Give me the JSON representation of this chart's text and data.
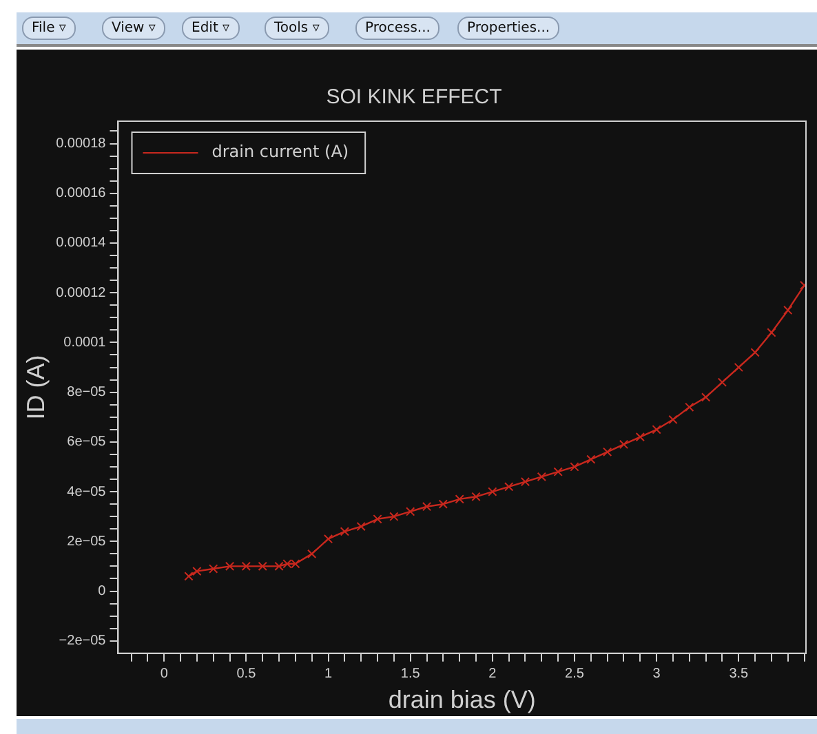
{
  "chart_data": {
    "type": "line",
    "title": "SOI KINK EFFECT",
    "xlabel": "drain bias (V)",
    "ylabel": "ID (A)",
    "x": [
      0.15,
      0.2,
      0.3,
      0.4,
      0.5,
      0.6,
      0.7,
      0.75,
      0.8,
      0.9,
      1.0,
      1.1,
      1.2,
      1.3,
      1.4,
      1.5,
      1.6,
      1.7,
      1.8,
      1.9,
      2.0,
      2.1,
      2.2,
      2.3,
      2.4,
      2.5,
      2.6,
      2.7,
      2.8,
      2.9,
      3.0,
      3.1,
      3.2,
      3.3,
      3.4,
      3.5,
      3.6,
      3.7,
      3.8,
      3.9
    ],
    "series": [
      {
        "name": "drain current (A)",
        "color": "#c8281e",
        "values": [
          6e-06,
          8e-06,
          9e-06,
          1e-05,
          1e-05,
          1e-05,
          1e-05,
          1.1e-05,
          1.1e-05,
          1.5e-05,
          2.1e-05,
          2.4e-05,
          2.6e-05,
          2.9e-05,
          3e-05,
          3.2e-05,
          3.4e-05,
          3.5e-05,
          3.7e-05,
          3.8e-05,
          4e-05,
          4.2e-05,
          4.4e-05,
          4.6e-05,
          4.8e-05,
          5e-05,
          5.3e-05,
          5.6e-05,
          5.9e-05,
          6.2e-05,
          6.5e-05,
          6.9e-05,
          7.4e-05,
          7.8e-05,
          8.4e-05,
          9e-05,
          9.6e-05,
          0.000104,
          0.000113,
          0.000123
        ]
      }
    ],
    "xlim": [
      -0.28,
      3.91
    ],
    "ylim": [
      -2.5e-05,
      0.000189
    ],
    "xticks": [
      {
        "value": -0.2,
        "label": null
      },
      {
        "value": -0.1,
        "label": null
      },
      0,
      {
        "value": 0.1,
        "label": null
      },
      {
        "value": 0.2,
        "label": null
      },
      {
        "value": 0.3,
        "label": null
      },
      {
        "value": 0.4,
        "label": null
      },
      0.5,
      {
        "value": 0.6,
        "label": null
      },
      {
        "value": 0.7,
        "label": null
      },
      {
        "value": 0.8,
        "label": null
      },
      {
        "value": 0.9,
        "label": null
      },
      1,
      {
        "value": 1.1,
        "label": null
      },
      {
        "value": 1.2,
        "label": null
      },
      {
        "value": 1.3,
        "label": null
      },
      {
        "value": 1.4,
        "label": null
      },
      1.5,
      {
        "value": 1.6,
        "label": null
      },
      {
        "value": 1.7,
        "label": null
      },
      {
        "value": 1.8,
        "label": null
      },
      {
        "value": 1.9,
        "label": null
      },
      2,
      {
        "value": 2.1,
        "label": null
      },
      {
        "value": 2.2,
        "label": null
      },
      {
        "value": 2.3,
        "label": null
      },
      {
        "value": 2.4,
        "label": null
      },
      2.5,
      {
        "value": 2.6,
        "label": null
      },
      {
        "value": 2.7,
        "label": null
      },
      {
        "value": 2.8,
        "label": null
      },
      {
        "value": 2.9,
        "label": null
      },
      3,
      {
        "value": 3.1,
        "label": null
      },
      {
        "value": 3.2,
        "label": null
      },
      {
        "value": 3.3,
        "label": null
      },
      {
        "value": 3.4,
        "label": null
      },
      3.5,
      {
        "value": 3.6,
        "label": null
      },
      {
        "value": 3.7,
        "label": null
      },
      {
        "value": 3.8,
        "label": null
      },
      {
        "value": 3.9,
        "label": null
      }
    ],
    "yticks": [
      {
        "value": -2e-05,
        "label": "−2e−05"
      },
      {
        "value": -1.5e-05,
        "label": null
      },
      {
        "value": -1e-05,
        "label": null
      },
      {
        "value": -5e-06,
        "label": null
      },
      0,
      {
        "value": 5e-06,
        "label": null
      },
      {
        "value": 1e-05,
        "label": null
      },
      {
        "value": 1.5e-05,
        "label": null
      },
      {
        "value": 2e-05,
        "label": "2e−05"
      },
      {
        "value": 2.5e-05,
        "label": null
      },
      {
        "value": 3e-05,
        "label": null
      },
      {
        "value": 3.5e-05,
        "label": null
      },
      {
        "value": 4e-05,
        "label": "4e−05"
      },
      {
        "value": 4.5e-05,
        "label": null
      },
      {
        "value": 5e-05,
        "label": null
      },
      {
        "value": 5.5e-05,
        "label": null
      },
      {
        "value": 6e-05,
        "label": "6e−05"
      },
      {
        "value": 6.5e-05,
        "label": null
      },
      {
        "value": 7e-05,
        "label": null
      },
      {
        "value": 7.5e-05,
        "label": null
      },
      {
        "value": 8e-05,
        "label": "8e−05"
      },
      {
        "value": 8.5e-05,
        "label": null
      },
      {
        "value": 9e-05,
        "label": null
      },
      {
        "value": 9.5e-05,
        "label": null
      },
      0.0001,
      {
        "value": 0.000105,
        "label": null
      },
      {
        "value": 0.00011,
        "label": null
      },
      {
        "value": 0.000115,
        "label": null
      },
      0.00012,
      {
        "value": 0.000125,
        "label": null
      },
      {
        "value": 0.00013,
        "label": null
      },
      {
        "value": 0.000135,
        "label": null
      },
      0.00014,
      {
        "value": 0.000145,
        "label": null
      },
      {
        "value": 0.00015,
        "label": null
      },
      {
        "value": 0.000155,
        "label": null
      },
      0.00016,
      {
        "value": 0.000165,
        "label": null
      },
      {
        "value": 0.00017,
        "label": null
      },
      {
        "value": 0.000175,
        "label": null
      },
      0.00018,
      {
        "value": 0.000185,
        "label": null
      }
    ],
    "annotations": [
      "File ▿",
      "View ▿",
      "Edit ▿",
      "Tools ▿",
      "Process...",
      "Properties..."
    ],
    "legend": "top left",
    "marker": "cross",
    "line_style": "solid"
  }
}
